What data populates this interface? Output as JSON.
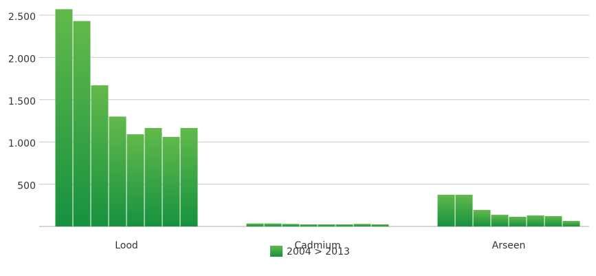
{
  "chart_data": {
    "type": "grouped-bar",
    "categories": [
      "Lood",
      "Cadmium",
      "Arseen"
    ],
    "series": [
      {
        "name": "2004 > 2013",
        "color": "#3fa845",
        "values": [
          [
            2570,
            2430,
            1670,
            1300,
            1090,
            1165,
            1060,
            1165
          ],
          [
            35,
            35,
            30,
            25,
            25,
            25,
            30,
            25
          ],
          [
            375,
            375,
            195,
            138,
            114,
            130,
            122,
            65
          ]
        ]
      }
    ],
    "ylim": [
      0,
      2600
    ],
    "yticks": [
      {
        "value": 500,
        "label": "500"
      },
      {
        "value": 1000,
        "label": "1.000"
      },
      {
        "value": 1500,
        "label": "1.500"
      },
      {
        "value": 2000,
        "label": "2.000"
      },
      {
        "value": 2500,
        "label": "2.500"
      }
    ],
    "grid": true,
    "legend": "bottom"
  }
}
